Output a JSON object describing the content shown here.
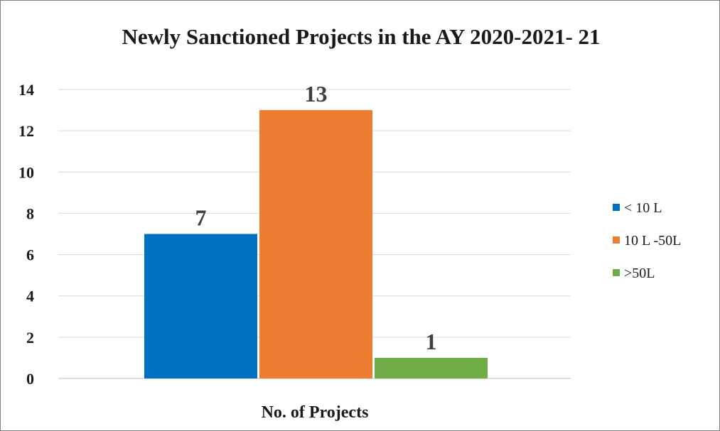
{
  "chart_data": {
    "type": "bar",
    "title": "Newly Sanctioned Projects in the AY 2020-2021-   21",
    "xlabel": "No. of Projects",
    "ylabel": "",
    "ylim": [
      0,
      14
    ],
    "yticks": [
      0,
      2,
      4,
      6,
      8,
      10,
      12,
      14
    ],
    "grid": true,
    "legend_position": "right",
    "data_labels": true,
    "series": [
      {
        "name": "< 10 L",
        "values": [
          7
        ],
        "color": "#0070C0"
      },
      {
        "name": "10 L -50L",
        "values": [
          13
        ],
        "color": "#ED7D31"
      },
      {
        "name": ">50L",
        "values": [
          1
        ],
        "color": "#70AD47"
      }
    ]
  }
}
